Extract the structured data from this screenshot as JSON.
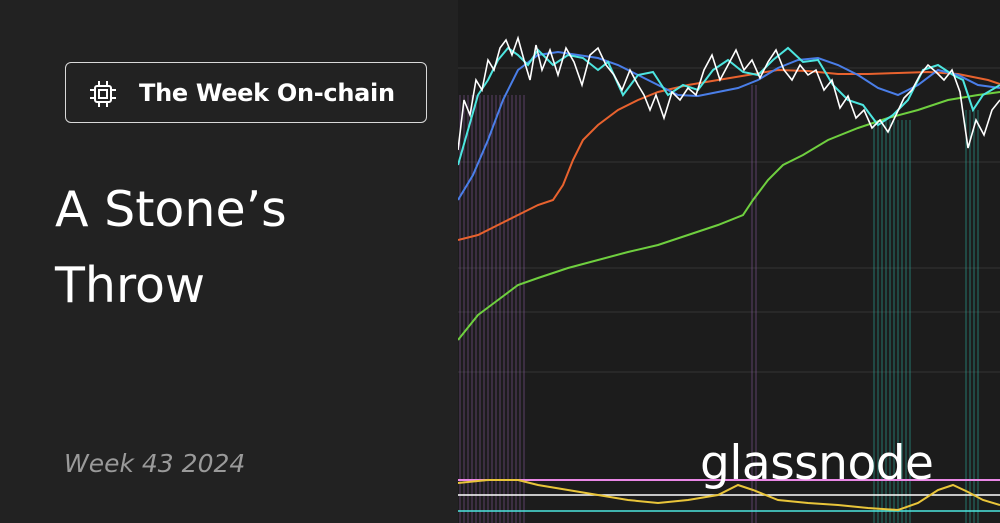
{
  "badge": {
    "label": "The Week On-chain",
    "icon": "chip-icon"
  },
  "title": {
    "line1": "A Stone’s",
    "line2": "Throw"
  },
  "week_label": "Week 43 2024",
  "brand": "glassnode",
  "colors": {
    "background": "#222222",
    "chart_background": "#1c1c1c",
    "white_line": "#ffffff",
    "cyan_line": "#4de6e0",
    "blue_line": "#4a7ee8",
    "orange_line": "#e8622e",
    "green_line": "#6fcf3f",
    "yellow_line": "#e9c53a",
    "pink_line": "#ea88e6",
    "purple_band": "#8f5fa8",
    "teal_band": "#2bb3a3"
  }
}
